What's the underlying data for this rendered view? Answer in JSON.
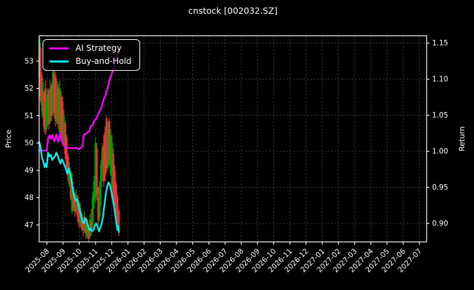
{
  "chart_data": {
    "type": "candlestick+line",
    "title": "cnstock [002032.SZ]",
    "ylabel_left": "Price",
    "ylabel_right": "Return",
    "legend_position": "upper-left",
    "grid": {
      "visible": true,
      "color": "#4d4d4d",
      "style": "dashed"
    },
    "colors": {
      "background": "#000000",
      "frame": "#ffffff",
      "text": "#ffffff",
      "grid": "#4d4d4d"
    },
    "x_tick_start_frac": 0.02,
    "x_tick_step_frac": 0.0418,
    "x_tick_labels": [
      "2025-08",
      "2025-09",
      "2025-10",
      "2025-11",
      "2025-12",
      "2026-01",
      "2026-02",
      "2026-03",
      "2026-04",
      "2026-05",
      "2026-06",
      "2026-07",
      "2026-08",
      "2026-09",
      "2026-10",
      "2026-11",
      "2026-12",
      "2027-01",
      "2027-02",
      "2027-03",
      "2027-04",
      "2027-05",
      "2027-06",
      "2027-07"
    ],
    "price_axis": {
      "min": 46.38,
      "max": 53.93,
      "ticks": [
        "47",
        "48",
        "49",
        "50",
        "51",
        "52",
        "53"
      ]
    },
    "return_axis": {
      "min": 0.8744,
      "max": 1.1602,
      "ticks": [
        "0.90",
        "0.95",
        "1.00",
        "1.05",
        "1.10",
        "1.15"
      ],
      "grid_source": true
    },
    "candles": {
      "up_color": "#00a000",
      "down_color": "#e83535",
      "bars": [
        [
          0.0009,
          52.4,
          53.9,
          52.2,
          53.8
        ],
        [
          0.0035,
          53.5,
          53.6,
          51.5,
          51.7
        ],
        [
          0.0062,
          52.5,
          52.6,
          51.2,
          51.4
        ],
        [
          0.0089,
          51.0,
          52.4,
          50.9,
          52.2
        ],
        [
          0.0124,
          51.8,
          51.9,
          50.4,
          50.6
        ],
        [
          0.016,
          52.0,
          52.3,
          50.3,
          50.5
        ],
        [
          0.0186,
          50.5,
          51.8,
          50.4,
          51.5
        ],
        [
          0.0213,
          50.7,
          52.0,
          50.6,
          51.8
        ],
        [
          0.0248,
          51.9,
          52.0,
          50.5,
          50.7
        ],
        [
          0.0284,
          50.8,
          52.3,
          50.7,
          52.0
        ],
        [
          0.0319,
          52.1,
          52.2,
          50.8,
          51.0
        ],
        [
          0.0355,
          51.1,
          52.9,
          51.0,
          52.6
        ],
        [
          0.039,
          52.5,
          52.7,
          50.9,
          51.1
        ],
        [
          0.0426,
          52.4,
          52.6,
          50.6,
          50.8
        ],
        [
          0.0461,
          50.8,
          52.3,
          50.7,
          52.1
        ],
        [
          0.0496,
          52.0,
          52.2,
          50.5,
          50.7
        ],
        [
          0.0532,
          50.4,
          52.3,
          50.3,
          52.0
        ],
        [
          0.0567,
          51.7,
          51.9,
          50.2,
          50.4
        ],
        [
          0.0603,
          51.5,
          51.7,
          49.9,
          50.1
        ],
        [
          0.0638,
          50.0,
          51.2,
          49.9,
          51.0
        ],
        [
          0.0674,
          50.7,
          50.8,
          49.4,
          49.6
        ],
        [
          0.0709,
          50.2,
          50.3,
          48.9,
          49.1
        ],
        [
          0.0745,
          49.5,
          49.6,
          48.6,
          48.8
        ],
        [
          0.078,
          48.5,
          49.3,
          48.4,
          49.1
        ],
        [
          0.0816,
          48.9,
          49.0,
          47.9,
          48.0
        ],
        [
          0.0851,
          47.5,
          48.9,
          47.4,
          48.6
        ],
        [
          0.0887,
          48.3,
          48.4,
          47.5,
          47.7
        ],
        [
          0.0922,
          48.1,
          48.2,
          47.3,
          47.5
        ],
        [
          0.0957,
          47.5,
          48.3,
          47.4,
          48.1
        ],
        [
          0.0993,
          48.0,
          48.1,
          47.1,
          47.3
        ],
        [
          0.1028,
          47.8,
          47.9,
          46.9,
          47.1
        ],
        [
          0.1064,
          47.0,
          47.8,
          46.9,
          47.6
        ],
        [
          0.1099,
          47.4,
          47.5,
          46.8,
          46.9
        ],
        [
          0.1135,
          47.2,
          47.3,
          46.6,
          46.8
        ],
        [
          0.117,
          46.8,
          47.5,
          46.7,
          47.3
        ],
        [
          0.1206,
          47.2,
          47.3,
          46.5,
          46.7
        ],
        [
          0.1241,
          46.6,
          47.2,
          46.5,
          47.0
        ],
        [
          0.1277,
          46.9,
          47.0,
          46.4,
          46.5
        ],
        [
          0.1312,
          46.6,
          47.4,
          46.5,
          47.2
        ],
        [
          0.1348,
          47.1,
          47.6,
          46.6,
          46.8
        ],
        [
          0.1383,
          47.0,
          48.2,
          46.9,
          48.0
        ],
        [
          0.1418,
          47.9,
          48.8,
          47.6,
          48.6
        ],
        [
          0.1454,
          48.0,
          50.2,
          47.8,
          50.0
        ],
        [
          0.1489,
          49.8,
          50.0,
          47.9,
          48.1
        ],
        [
          0.1525,
          48.0,
          48.4,
          47.0,
          47.2
        ],
        [
          0.156,
          47.3,
          48.6,
          47.1,
          48.4
        ],
        [
          0.1596,
          48.4,
          49.4,
          47.7,
          49.2
        ],
        [
          0.1631,
          49.2,
          50.0,
          48.6,
          49.8
        ],
        [
          0.1667,
          49.9,
          50.3,
          48.4,
          48.6
        ],
        [
          0.1702,
          50.4,
          50.6,
          48.6,
          48.8
        ],
        [
          0.1738,
          50.9,
          51.0,
          48.9,
          49.1
        ],
        [
          0.1773,
          49.1,
          50.8,
          49.0,
          50.6
        ],
        [
          0.1809,
          50.8,
          50.9,
          49.2,
          49.4
        ],
        [
          0.1844,
          48.9,
          50.5,
          48.8,
          50.3
        ],
        [
          0.1879,
          48.4,
          50.3,
          48.3,
          50.0
        ],
        [
          0.1915,
          49.6,
          49.8,
          47.9,
          48.1
        ],
        [
          0.195,
          49.0,
          49.2,
          47.5,
          47.7
        ],
        [
          0.1986,
          48.5,
          48.6,
          47.1,
          47.3
        ],
        [
          0.2021,
          48.0,
          48.1,
          46.8,
          47.0
        ],
        [
          0.2057,
          47.5,
          47.6,
          46.6,
          46.8
        ]
      ]
    },
    "series": [
      {
        "id": "ai-strategy",
        "name": "AI Strategy",
        "color": "#ff00ff",
        "axis": "return",
        "points": [
          [
            0.0,
            1.001
          ],
          [
            0.0195,
            1.001
          ],
          [
            0.023,
            1.018
          ],
          [
            0.0266,
            1.022
          ],
          [
            0.0301,
            1.017
          ],
          [
            0.0337,
            1.023
          ],
          [
            0.039,
            1.014
          ],
          [
            0.0443,
            1.023
          ],
          [
            0.0496,
            1.013
          ],
          [
            0.055,
            1.026
          ],
          [
            0.0585,
            1.013
          ],
          [
            0.0638,
            1.009
          ],
          [
            0.0674,
            1.005
          ],
          [
            0.0762,
            1.005
          ],
          [
            0.0851,
            1.004
          ],
          [
            0.094,
            1.005
          ],
          [
            0.1028,
            1.003
          ],
          [
            0.1117,
            1.007
          ],
          [
            0.1152,
            1.023
          ],
          [
            0.1206,
            1.024
          ],
          [
            0.1241,
            1.026
          ],
          [
            0.1294,
            1.028
          ],
          [
            0.133,
            1.035
          ],
          [
            0.1383,
            1.036
          ],
          [
            0.1418,
            1.042
          ],
          [
            0.1472,
            1.045
          ],
          [
            0.1507,
            1.05
          ],
          [
            0.156,
            1.056
          ],
          [
            0.1596,
            1.059
          ],
          [
            0.1631,
            1.066
          ],
          [
            0.1667,
            1.072
          ],
          [
            0.1702,
            1.076
          ],
          [
            0.1738,
            1.083
          ],
          [
            0.1773,
            1.089
          ],
          [
            0.1809,
            1.097
          ],
          [
            0.1844,
            1.103
          ],
          [
            0.1879,
            1.108
          ],
          [
            0.1915,
            1.115
          ],
          [
            0.195,
            1.121
          ],
          [
            0.1986,
            1.128
          ],
          [
            0.2021,
            1.136
          ],
          [
            0.2057,
            1.141
          ]
        ]
      },
      {
        "id": "buy-and-hold",
        "name": "Buy-and-Hold",
        "color": "#00f0f0",
        "axis": "return",
        "points": [
          [
            0.0,
            1.013
          ],
          [
            0.0035,
            1.007
          ],
          [
            0.0071,
            0.991
          ],
          [
            0.0106,
            0.986
          ],
          [
            0.0142,
            0.978
          ],
          [
            0.0177,
            0.983
          ],
          [
            0.0195,
            0.978
          ],
          [
            0.023,
            0.998
          ],
          [
            0.0266,
            0.993
          ],
          [
            0.0301,
            0.995
          ],
          [
            0.0337,
            0.988
          ],
          [
            0.0372,
            0.991
          ],
          [
            0.0408,
            0.993
          ],
          [
            0.0443,
            0.998
          ],
          [
            0.0479,
            0.994
          ],
          [
            0.0514,
            0.988
          ],
          [
            0.055,
            0.983
          ],
          [
            0.0585,
            0.989
          ],
          [
            0.0621,
            0.985
          ],
          [
            0.0674,
            0.978
          ],
          [
            0.0727,
            0.969
          ],
          [
            0.0762,
            0.976
          ],
          [
            0.0798,
            0.97
          ],
          [
            0.0833,
            0.96
          ],
          [
            0.0869,
            0.947
          ],
          [
            0.0904,
            0.938
          ],
          [
            0.094,
            0.932
          ],
          [
            0.0975,
            0.934
          ],
          [
            0.1011,
            0.927
          ],
          [
            0.1046,
            0.918
          ],
          [
            0.1082,
            0.911
          ],
          [
            0.1117,
            0.903
          ],
          [
            0.1152,
            0.9
          ],
          [
            0.1188,
            0.907
          ],
          [
            0.1223,
            0.905
          ],
          [
            0.1259,
            0.896
          ],
          [
            0.1294,
            0.891
          ],
          [
            0.133,
            0.893
          ],
          [
            0.1365,
            0.889
          ],
          [
            0.1401,
            0.891
          ],
          [
            0.1436,
            0.897
          ],
          [
            0.1472,
            0.9
          ],
          [
            0.1507,
            0.896
          ],
          [
            0.1543,
            0.889
          ],
          [
            0.1578,
            0.894
          ],
          [
            0.1613,
            0.9
          ],
          [
            0.1649,
            0.91
          ],
          [
            0.1684,
            0.926
          ],
          [
            0.172,
            0.941
          ],
          [
            0.1755,
            0.951
          ],
          [
            0.1791,
            0.957
          ],
          [
            0.1826,
            0.953
          ],
          [
            0.1862,
            0.945
          ],
          [
            0.1897,
            0.934
          ],
          [
            0.1933,
            0.924
          ],
          [
            0.1968,
            0.91
          ],
          [
            0.2004,
            0.896
          ],
          [
            0.2021,
            0.891
          ],
          [
            0.2039,
            0.896
          ],
          [
            0.2057,
            0.888
          ]
        ]
      }
    ]
  }
}
